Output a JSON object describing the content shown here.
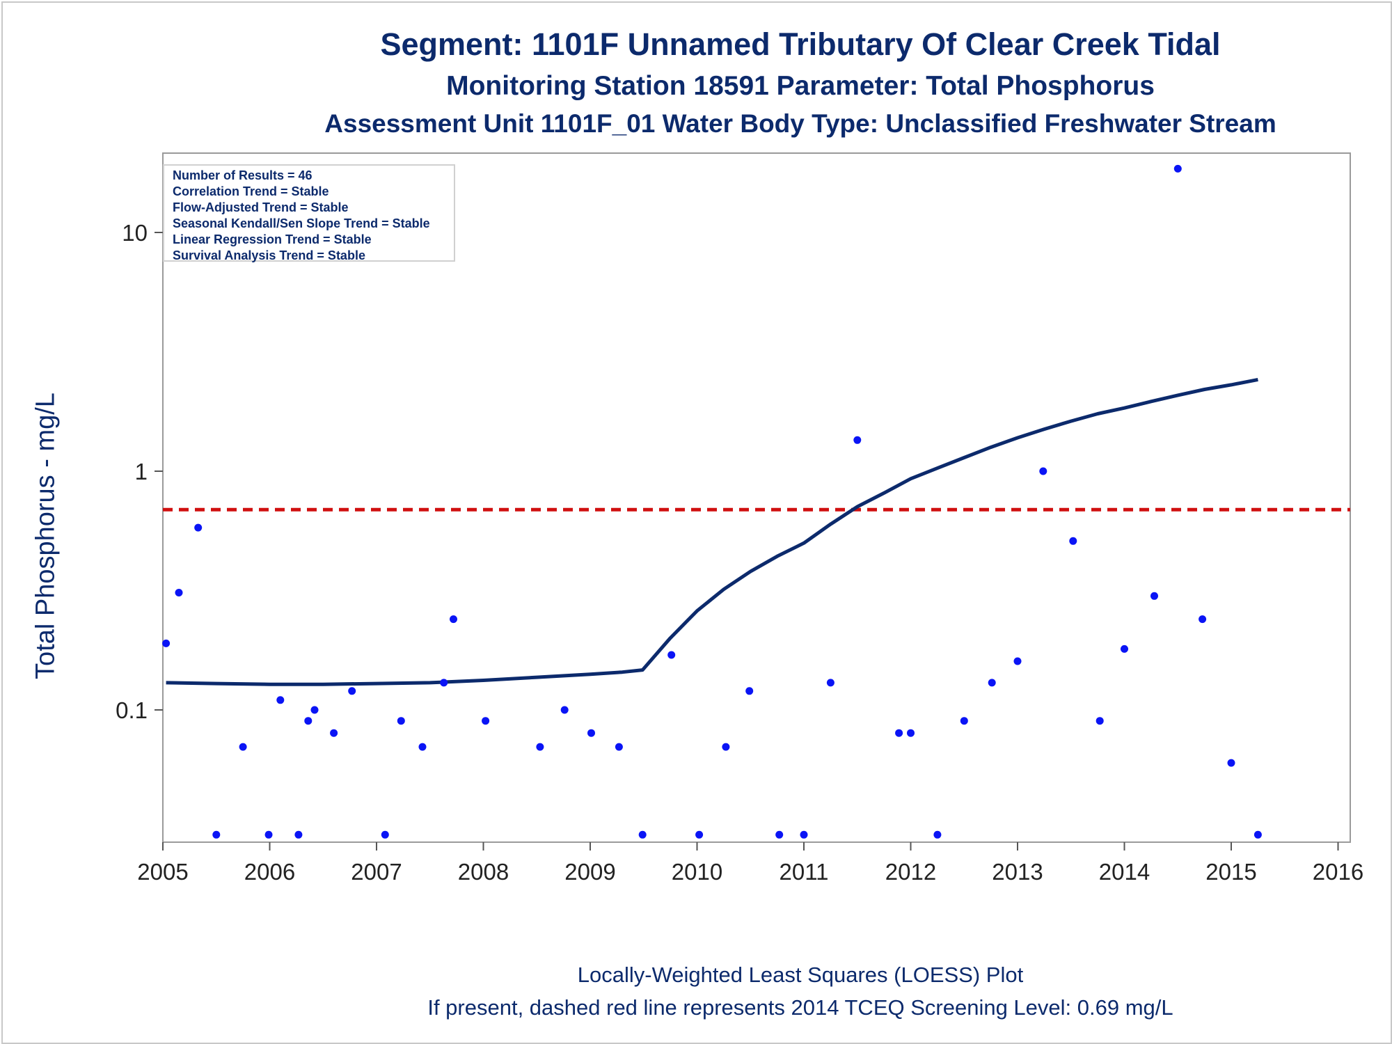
{
  "title": "Segment: 1101F  Unnamed Tributary Of Clear Creek Tidal",
  "subtitle": "Monitoring Station 18591 Parameter: Total Phosphorus",
  "subtitle2": "Assessment Unit 1101F_01   Water Body Type: Unclassified Freshwater Stream",
  "footnote1": "Locally-Weighted Least Squares (LOESS) Plot",
  "footnote2": "If present, dashed red line represents 2014 TCEQ Screening Level: 0.69 mg/L",
  "info": [
    "Number of Results = 46",
    "Correlation Trend = Stable",
    "Flow-Adjusted Trend = Stable",
    "Seasonal Kendall/Sen Slope Trend = Stable",
    "Linear Regression Trend = Stable",
    "Survival Analysis Trend = Stable"
  ],
  "colors": {
    "points": "#0a14f5",
    "loess": "#0c2a6c",
    "screening": "#d01010",
    "text": "#0c2a6c"
  },
  "chart_data": {
    "type": "scatter",
    "ylabel": "Total Phosphorus - mg/L",
    "xlabel": "",
    "yscale": "log",
    "xlim": [
      2005,
      2016
    ],
    "ylim": [
      0.03,
      20
    ],
    "xticks": [
      2005,
      2006,
      2007,
      2008,
      2009,
      2010,
      2011,
      2012,
      2013,
      2014,
      2015,
      2016
    ],
    "xtick_labels": [
      "2005",
      "2006",
      "2007",
      "2008",
      "2009",
      "2010",
      "2011",
      "2012",
      "2013",
      "2014",
      "2015",
      "2016"
    ],
    "yticks": [
      0.1,
      1,
      10
    ],
    "ytick_labels": [
      "0.1",
      "1",
      "10"
    ],
    "points": [
      [
        2005.03,
        0.19
      ],
      [
        2005.15,
        0.31
      ],
      [
        2005.33,
        0.58
      ],
      [
        2005.5,
        0.03
      ],
      [
        2005.75,
        0.07
      ],
      [
        2005.99,
        0.03
      ],
      [
        2006.1,
        0.11
      ],
      [
        2006.27,
        0.03
      ],
      [
        2006.36,
        0.09
      ],
      [
        2006.42,
        0.1
      ],
      [
        2006.6,
        0.08
      ],
      [
        2006.77,
        0.12
      ],
      [
        2007.08,
        0.03
      ],
      [
        2007.23,
        0.09
      ],
      [
        2007.43,
        0.07
      ],
      [
        2007.63,
        0.13
      ],
      [
        2007.72,
        0.24
      ],
      [
        2008.02,
        0.09
      ],
      [
        2008.53,
        0.07
      ],
      [
        2008.76,
        0.1
      ],
      [
        2009.01,
        0.08
      ],
      [
        2009.27,
        0.07
      ],
      [
        2009.49,
        0.03
      ],
      [
        2009.76,
        0.17
      ],
      [
        2010.02,
        0.03
      ],
      [
        2010.27,
        0.07
      ],
      [
        2010.49,
        0.12
      ],
      [
        2010.77,
        0.03
      ],
      [
        2011.0,
        0.03
      ],
      [
        2011.25,
        0.13
      ],
      [
        2011.5,
        1.35
      ],
      [
        2011.89,
        0.08
      ],
      [
        2012.0,
        0.08
      ],
      [
        2012.25,
        0.03
      ],
      [
        2012.5,
        0.09
      ],
      [
        2012.76,
        0.13
      ],
      [
        2013.0,
        0.16
      ],
      [
        2013.24,
        1.0
      ],
      [
        2013.52,
        0.51
      ],
      [
        2013.77,
        0.09
      ],
      [
        2014.0,
        0.18
      ],
      [
        2014.28,
        0.3
      ],
      [
        2014.5,
        18.5
      ],
      [
        2014.73,
        0.24
      ],
      [
        2015.0,
        0.06
      ],
      [
        2015.25,
        0.03
      ]
    ],
    "loess": [
      [
        2005.03,
        0.13
      ],
      [
        2005.5,
        0.129
      ],
      [
        2006.0,
        0.128
      ],
      [
        2006.5,
        0.128
      ],
      [
        2007.0,
        0.129
      ],
      [
        2007.5,
        0.13
      ],
      [
        2008.0,
        0.133
      ],
      [
        2008.5,
        0.137
      ],
      [
        2009.0,
        0.141
      ],
      [
        2009.3,
        0.144
      ],
      [
        2009.49,
        0.147
      ],
      [
        2009.75,
        0.2
      ],
      [
        2010.0,
        0.26
      ],
      [
        2010.25,
        0.32
      ],
      [
        2010.5,
        0.38
      ],
      [
        2010.75,
        0.44
      ],
      [
        2011.0,
        0.5
      ],
      [
        2011.25,
        0.6
      ],
      [
        2011.5,
        0.71
      ],
      [
        2011.75,
        0.81
      ],
      [
        2012.0,
        0.93
      ],
      [
        2012.25,
        1.03
      ],
      [
        2012.5,
        1.14
      ],
      [
        2012.75,
        1.26
      ],
      [
        2013.0,
        1.38
      ],
      [
        2013.25,
        1.5
      ],
      [
        2013.5,
        1.62
      ],
      [
        2013.75,
        1.74
      ],
      [
        2014.0,
        1.84
      ],
      [
        2014.25,
        1.96
      ],
      [
        2014.5,
        2.08
      ],
      [
        2014.75,
        2.2
      ],
      [
        2015.0,
        2.3
      ],
      [
        2015.25,
        2.42
      ]
    ],
    "screening_level": 0.69
  }
}
